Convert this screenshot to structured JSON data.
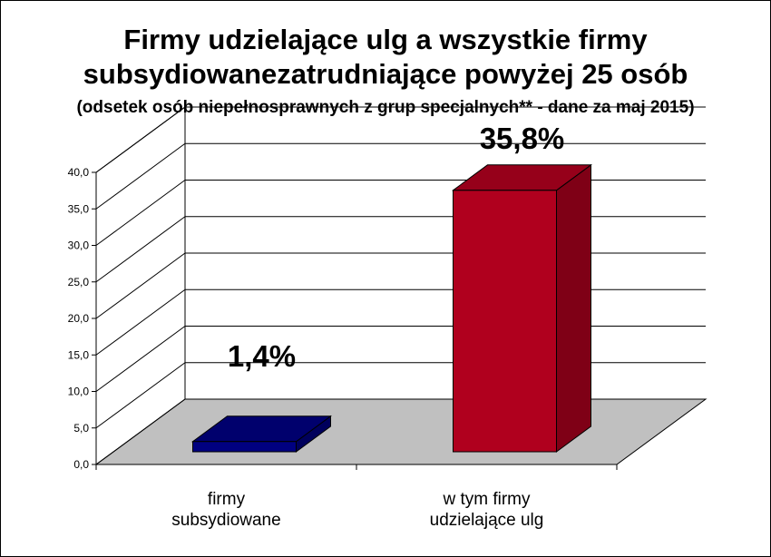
{
  "chart_data": {
    "type": "bar",
    "title_lines": [
      "Firmy udzielające ulg a wszystkie firmy",
      "subsydiowanezatrudniające powyżej 25 osób"
    ],
    "subtitle": "(odsetek osób niepełnosprawnych z grup specjalnych** - dane za maj 2015)",
    "categories": [
      [
        "firmy",
        "subsydiowane"
      ],
      [
        "w tym firmy",
        "udzielające ulg"
      ]
    ],
    "values": [
      1.4,
      35.8
    ],
    "data_labels": [
      "1,4%",
      "35,8%"
    ],
    "bar_colors": [
      "#000080",
      "#b0001e"
    ],
    "y_ticks": [
      "0,0",
      "5,0",
      "10,0",
      "15,0",
      "20,0",
      "25,0",
      "30,0",
      "35,0",
      "40,0"
    ],
    "ylim": [
      0,
      40
    ],
    "grid": true,
    "legend": "none"
  }
}
